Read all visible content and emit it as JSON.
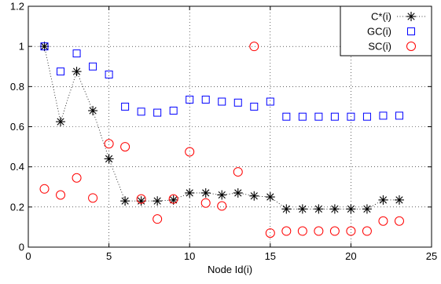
{
  "chart_data": {
    "type": "scatter",
    "xlabel": "Node Id(i)",
    "ylabel": "",
    "title": "",
    "xlim": [
      0,
      25
    ],
    "ylim": [
      0,
      1.2
    ],
    "xticks": [
      0,
      5,
      10,
      15,
      20,
      25
    ],
    "yticks": [
      0,
      0.2,
      0.4,
      0.6,
      0.8,
      1,
      1.2
    ],
    "xtick_labels": [
      "0",
      "5",
      "10",
      "15",
      "20",
      "25"
    ],
    "ytick_labels": [
      "0",
      "0.2",
      "0.4",
      "0.6",
      "0.8",
      "1",
      "1.2"
    ],
    "grid": true,
    "legend_position": "top-right",
    "series": [
      {
        "name": "C*(i)",
        "marker": "asterisk",
        "line": "dotted",
        "color": "#000000",
        "x": [
          1,
          2,
          3,
          4,
          5,
          6,
          7,
          8,
          9,
          10,
          11,
          12,
          13,
          14,
          15,
          16,
          17,
          18,
          19,
          20,
          21,
          22,
          23
        ],
        "y": [
          1.0,
          0.625,
          0.875,
          0.68,
          0.44,
          0.23,
          0.23,
          0.23,
          0.235,
          0.27,
          0.27,
          0.26,
          0.27,
          0.255,
          0.25,
          0.19,
          0.19,
          0.19,
          0.19,
          0.19,
          0.19,
          0.235,
          0.235
        ]
      },
      {
        "name": "GC(i)",
        "marker": "square",
        "line": "none",
        "color": "#0000ff",
        "x": [
          1,
          2,
          3,
          4,
          5,
          6,
          7,
          8,
          9,
          10,
          11,
          12,
          13,
          14,
          15,
          16,
          17,
          18,
          19,
          20,
          21,
          22,
          23
        ],
        "y": [
          1.0,
          0.875,
          0.965,
          0.9,
          0.86,
          0.7,
          0.675,
          0.67,
          0.68,
          0.735,
          0.735,
          0.725,
          0.72,
          0.7,
          0.725,
          0.65,
          0.65,
          0.65,
          0.65,
          0.65,
          0.65,
          0.655,
          0.655
        ]
      },
      {
        "name": "SC(i)",
        "marker": "circle",
        "line": "none",
        "color": "#ff0000",
        "x": [
          1,
          2,
          3,
          4,
          5,
          6,
          7,
          8,
          9,
          10,
          11,
          12,
          13,
          14,
          15,
          16,
          17,
          18,
          19,
          20,
          21,
          22,
          23
        ],
        "y": [
          0.29,
          0.26,
          0.345,
          0.245,
          0.515,
          0.5,
          0.24,
          0.14,
          0.24,
          0.475,
          0.22,
          0.205,
          0.375,
          1.0,
          0.07,
          0.08,
          0.08,
          0.08,
          0.08,
          0.08,
          0.08,
          0.13,
          0.13
        ]
      }
    ]
  }
}
